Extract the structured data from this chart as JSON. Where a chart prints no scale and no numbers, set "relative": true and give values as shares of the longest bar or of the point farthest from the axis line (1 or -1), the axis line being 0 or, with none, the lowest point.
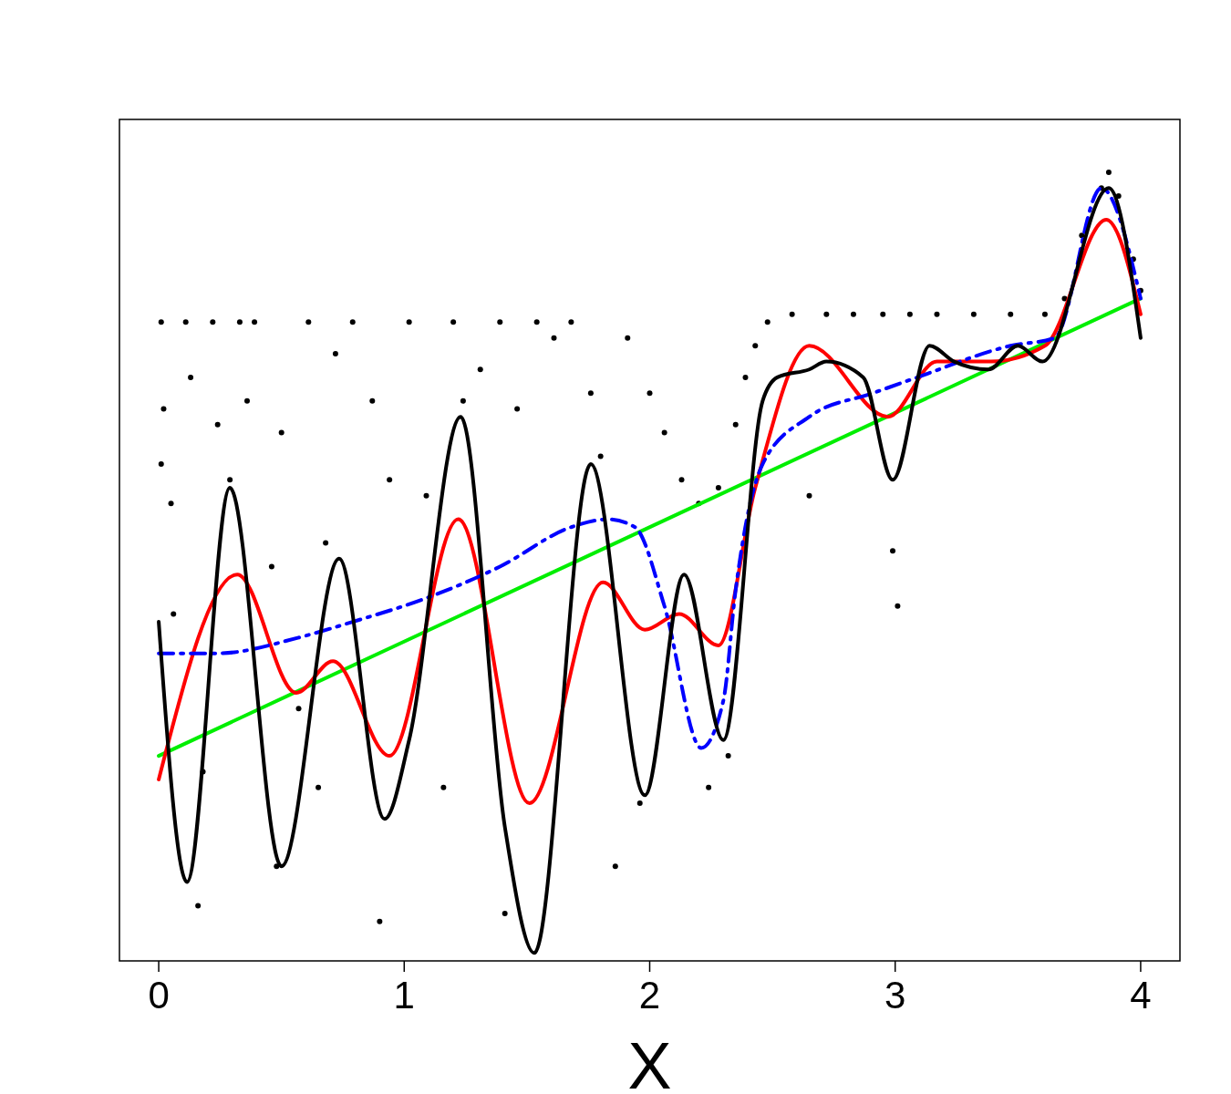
{
  "chart_data": {
    "type": "line",
    "relative": true,
    "xlabel": "X",
    "xlim": [
      -0.16,
      4.16
    ],
    "xticks": [
      0,
      1,
      2,
      3,
      4
    ],
    "grid": false,
    "series": [
      {
        "type": "scatter",
        "color": "#000000",
        "marker": "circle",
        "x": [
          0.01,
          0.02,
          0.01,
          0.05,
          0.06,
          0.11,
          0.13,
          0.16,
          0.18,
          0.22,
          0.24,
          0.29,
          0.33,
          0.36,
          0.39,
          0.46,
          0.48,
          0.5,
          0.57,
          0.61,
          0.65,
          0.68,
          0.72,
          0.79,
          0.87,
          0.9,
          0.94,
          1.02,
          1.09,
          1.16,
          1.2,
          1.24,
          1.31,
          1.39,
          1.41,
          1.46,
          1.54,
          1.61,
          1.68,
          1.76,
          1.8,
          1.86,
          1.91,
          1.96,
          2.0,
          2.06,
          2.13,
          2.2,
          2.24,
          2.28,
          2.32,
          2.35,
          2.39,
          2.43,
          2.48,
          2.58,
          2.65,
          2.72,
          2.83,
          2.95,
          2.99,
          3.01,
          3.06,
          3.17,
          3.32,
          3.47,
          3.61,
          3.69,
          3.76,
          3.84,
          3.87,
          3.91,
          3.97,
          4.0
        ],
        "values": [
          0.81,
          0.7,
          0.63,
          0.58,
          0.44,
          0.81,
          0.74,
          0.07,
          0.24,
          0.81,
          0.68,
          0.61,
          0.81,
          0.71,
          0.81,
          0.5,
          0.12,
          0.67,
          0.32,
          0.81,
          0.22,
          0.53,
          0.77,
          0.81,
          0.71,
          0.05,
          0.61,
          0.81,
          0.59,
          0.22,
          0.81,
          0.71,
          0.75,
          0.81,
          0.06,
          0.7,
          0.81,
          0.79,
          0.81,
          0.72,
          0.64,
          0.12,
          0.79,
          0.2,
          0.72,
          0.67,
          0.61,
          0.58,
          0.22,
          0.6,
          0.26,
          0.68,
          0.74,
          0.78,
          0.81,
          0.82,
          0.59,
          0.82,
          0.82,
          0.82,
          0.52,
          0.45,
          0.82,
          0.82,
          0.82,
          0.82,
          0.82,
          0.84,
          0.92,
          0.98,
          1.0,
          0.97,
          0.89,
          0.85
        ]
      },
      {
        "color": "#00ee00",
        "line_style": "solid",
        "x": [
          0,
          4
        ],
        "values": [
          0.26,
          0.84
        ]
      },
      {
        "color": "#ff0000",
        "line_style": "solid",
        "x": [
          0,
          0.32,
          0.56,
          0.71,
          0.94,
          1.22,
          1.51,
          1.81,
          1.98,
          2.12,
          2.28,
          2.43,
          2.65,
          2.97,
          3.17,
          3.39,
          3.61,
          3.86,
          4.0
        ],
        "values": [
          0.23,
          0.49,
          0.34,
          0.38,
          0.26,
          0.56,
          0.2,
          0.48,
          0.42,
          0.44,
          0.4,
          0.6,
          0.78,
          0.69,
          0.76,
          0.76,
          0.78,
          0.94,
          0.82
        ]
      },
      {
        "color": "#0000ff",
        "line_style": "dashed",
        "x": [
          0,
          0.24,
          0.57,
          0.79,
          1.09,
          1.39,
          1.68,
          1.83,
          1.94,
          2.06,
          2.21,
          2.3,
          2.35,
          2.46,
          2.65,
          2.91,
          3.09,
          3.47,
          3.65,
          3.84,
          4.0
        ],
        "values": [
          0.39,
          0.39,
          0.41,
          0.43,
          0.46,
          0.5,
          0.55,
          0.56,
          0.55,
          0.45,
          0.27,
          0.33,
          0.47,
          0.63,
          0.69,
          0.72,
          0.74,
          0.78,
          0.79,
          0.98,
          0.84
        ]
      },
      {
        "color": "#000000",
        "line_style": "solid",
        "x": [
          0,
          0.115,
          0.29,
          0.5,
          0.735,
          0.92,
          1.02,
          1.23,
          1.41,
          1.53,
          1.76,
          1.98,
          2.14,
          2.3,
          2.46,
          2.52,
          2.65,
          2.72,
          2.87,
          2.99,
          3.14,
          3.24,
          3.38,
          3.5,
          3.6,
          3.87,
          4.0
        ],
        "values": [
          0.43,
          0.1,
          0.6,
          0.12,
          0.51,
          0.18,
          0.28,
          0.69,
          0.17,
          0.01,
          0.63,
          0.21,
          0.49,
          0.28,
          0.71,
          0.74,
          0.75,
          0.76,
          0.74,
          0.61,
          0.78,
          0.76,
          0.75,
          0.78,
          0.76,
          0.98,
          0.79
        ]
      }
    ]
  }
}
